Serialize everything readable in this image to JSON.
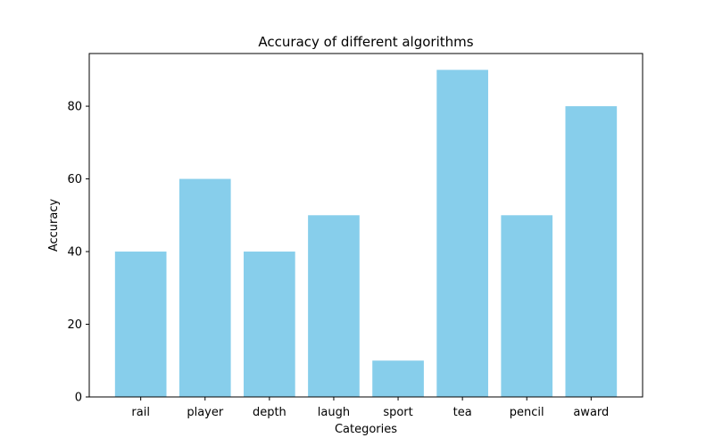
{
  "chart_data": {
    "type": "bar",
    "title": "Accuracy of different algorithms",
    "xlabel": "Categories",
    "ylabel": "Accuracy",
    "categories": [
      "rail",
      "player",
      "depth",
      "laugh",
      "sport",
      "tea",
      "pencil",
      "award"
    ],
    "values": [
      40,
      60,
      40,
      50,
      10,
      90,
      50,
      80
    ],
    "ylim": [
      0,
      94.5
    ],
    "yticks": [
      0,
      20,
      40,
      60,
      80
    ],
    "grid": false,
    "legend": "none",
    "bar_color": "#87CEEB"
  }
}
